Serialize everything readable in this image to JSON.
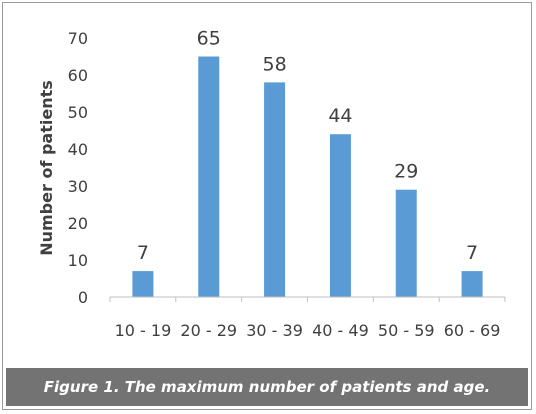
{
  "chart_data": {
    "type": "bar",
    "categories": [
      "10 - 19",
      "20 - 29",
      "30 - 39",
      "40 - 49",
      "50 - 59",
      "60 - 69"
    ],
    "values": [
      7,
      65,
      58,
      44,
      29,
      7
    ],
    "data_labels": [
      "7",
      "65",
      "58",
      "44",
      "29",
      "7"
    ],
    "title": "",
    "xlabel": "",
    "ylabel": "Number of patients",
    "ylim": [
      0,
      70
    ],
    "yticks": [
      "0",
      "10",
      "20",
      "30",
      "40",
      "50",
      "60",
      "70"
    ],
    "grid": false,
    "legend": "none",
    "bar_color": "#5B9BD5"
  },
  "caption": "Figure 1. The maximum number of patients and age."
}
